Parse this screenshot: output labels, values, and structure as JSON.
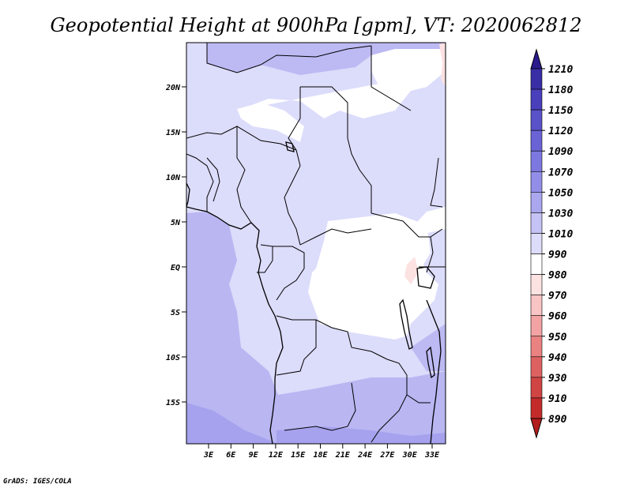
{
  "title": "Geopotential Height at 900hPa [gpm], VT: 2020062812",
  "credit": "GrADS: IGES/COLA",
  "map": {
    "lat_ticks": [
      "20N",
      "15N",
      "10N",
      "5N",
      "EQ",
      "5S",
      "10S",
      "15S"
    ],
    "lon_ticks": [
      "3E",
      "6E",
      "9E",
      "12E",
      "15E",
      "18E",
      "21E",
      "24E",
      "27E",
      "30E",
      "33E"
    ]
  },
  "colorbar": {
    "levels": [
      "1210",
      "1180",
      "1150",
      "1120",
      "1090",
      "1070",
      "1050",
      "1030",
      "1010",
      "990",
      "980",
      "970",
      "960",
      "950",
      "940",
      "930",
      "910",
      "890"
    ],
    "colors": [
      "#2a1a8c",
      "#3a2ea6",
      "#4a40bb",
      "#5a52c9",
      "#6a63d6",
      "#7d78e0",
      "#928ee8",
      "#aaa7ef",
      "#c5c3f5",
      "#dddcfa",
      "#ffffff",
      "#fde2e2",
      "#f9c4c4",
      "#f3a3a3",
      "#ea8282",
      "#de6161",
      "#d14444",
      "#c32b2b",
      "#b31d1d"
    ]
  }
}
